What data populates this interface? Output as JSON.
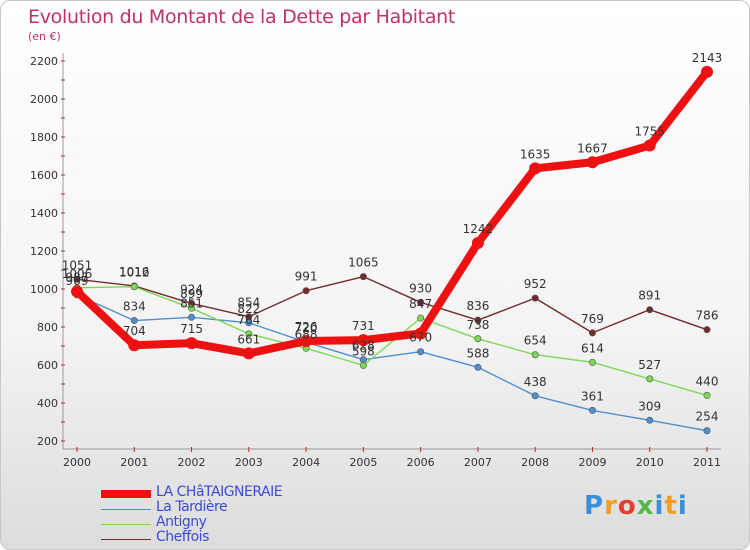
{
  "title": "Evolution du Montant de la Dette par Habitant",
  "subtitle": "(en €)",
  "logo": {
    "p": "P",
    "r": "r",
    "o": "o",
    "x": "x",
    "i": "i",
    "t": "t",
    "i2": "i"
  },
  "chart_data": {
    "type": "line",
    "categories": [
      "2000",
      "2001",
      "2002",
      "2003",
      "2004",
      "2005",
      "2006",
      "2007",
      "2008",
      "2009",
      "2010",
      "2011"
    ],
    "ylim": [
      200,
      2200
    ],
    "yticks": [
      200,
      400,
      600,
      800,
      1000,
      1200,
      1400,
      1600,
      1800,
      2000,
      2200
    ],
    "grid": false,
    "legend_position": "bottom-left",
    "series": [
      {
        "name": "Cheffois",
        "color": "#722c2c",
        "values": [
          1051,
          1016,
          924,
          854,
          991,
          1065,
          930,
          836,
          952,
          769,
          891,
          786
        ],
        "labels": [
          "1051",
          "1016",
          "924",
          "854",
          "991",
          "1065",
          "930",
          "836",
          "952",
          "769",
          "891",
          "786"
        ]
      },
      {
        "name": "La Tardière",
        "color": "#4f8fcf",
        "values": [
          969,
          834,
          851,
          822,
          720,
          628,
          670,
          588,
          438,
          361,
          309,
          254
        ],
        "labels": [
          "969",
          "834",
          "851",
          "822",
          "720",
          "628",
          "670",
          "588",
          "438",
          "361",
          "309",
          "254"
        ]
      },
      {
        "name": "Antigny",
        "color": "#7dd855",
        "values": [
          1006,
          1012,
          899,
          764,
          688,
          598,
          847,
          738,
          654,
          614,
          527,
          440
        ],
        "labels": [
          "1006",
          "1012",
          "899",
          "764",
          "688",
          "598",
          "847",
          "738",
          "654",
          "614",
          "527",
          "440"
        ]
      },
      {
        "name": "LA CHâTAIGNERAIE",
        "color": "#ee1111",
        "values": [
          987,
          704,
          715,
          661,
          726,
          731,
          766,
          1242,
          1635,
          1667,
          1755,
          2143
        ],
        "labels": [
          "987",
          "704",
          "715",
          "661",
          "726",
          "731",
          "",
          "1242",
          "1635",
          "1667",
          "1755",
          "2143"
        ]
      }
    ]
  }
}
